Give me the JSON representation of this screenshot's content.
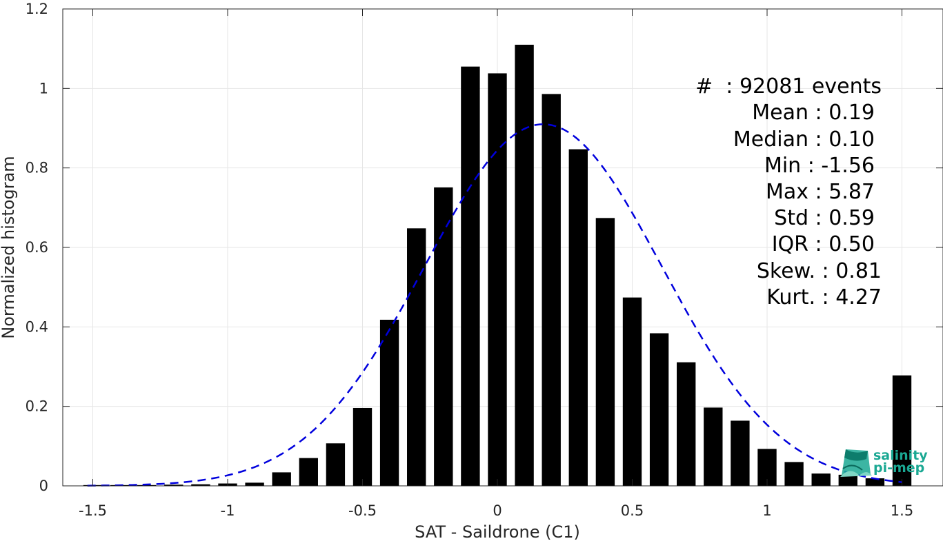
{
  "chart_data": {
    "type": "bar",
    "xlabel": "SAT - Saildrone (C1)",
    "ylabel": "Normalized histogram",
    "xlim": [
      -1.55,
      1.6
    ],
    "ylim": [
      0,
      1.2
    ],
    "x_ticks": [
      -1.5,
      -1,
      -0.5,
      0,
      0.5,
      1,
      1.5
    ],
    "x_tick_labels": [
      "-1.5",
      "-1",
      "-0.5",
      "0",
      "0.5",
      "1",
      "1.5"
    ],
    "y_ticks": [
      0,
      0.2,
      0.4,
      0.6,
      0.8,
      1,
      1.2
    ],
    "y_tick_labels": [
      "0",
      "0.2",
      "0.4",
      "0.6",
      "0.8",
      "1",
      "1.2"
    ],
    "grid": true,
    "bar_color": "#000000",
    "bar_width": 0.07,
    "series": [
      {
        "x": [
          -1.5,
          -1.4,
          -1.3,
          -1.2,
          -1.1,
          -1.0,
          -0.9,
          -0.8,
          -0.7,
          -0.6,
          -0.5,
          -0.4,
          -0.3,
          -0.2,
          -0.1,
          0.0,
          0.1,
          0.2,
          0.3,
          0.4,
          0.5,
          0.6,
          0.7,
          0.8,
          0.9,
          1.0,
          1.1,
          1.2,
          1.3,
          1.4,
          1.5
        ],
        "values": [
          0.002,
          0.002,
          0.002,
          0.003,
          0.004,
          0.006,
          0.008,
          0.034,
          0.07,
          0.107,
          0.196,
          0.418,
          0.648,
          0.751,
          1.055,
          1.038,
          1.11,
          0.986,
          0.847,
          0.674,
          0.474,
          0.384,
          0.311,
          0.197,
          0.164,
          0.093,
          0.06,
          0.031,
          0.028,
          0.019,
          0.278
        ]
      }
    ],
    "fit_curve": {
      "style": "dashed",
      "color": "#0000dd",
      "mean": 0.17,
      "std": 0.44,
      "peak": 0.91,
      "x_start": -1.52,
      "x_end": 1.5
    },
    "annotations": {
      "events_line": "#  : 92081 events",
      "stats": [
        {
          "label": "Mean : 0.19"
        },
        {
          "label": "Median : 0.10"
        },
        {
          "label": "Min : -1.56"
        },
        {
          "label": "Max : 5.87"
        },
        {
          "label": "Std : 0.59"
        },
        {
          "label": "IQR : 0.50"
        },
        {
          "label": "Skew. : 0.81"
        },
        {
          "label": "Kurt. : 4.27"
        }
      ]
    }
  },
  "logo": {
    "line1": "salinity",
    "line2": "pi-mep",
    "color": "#1aa893"
  }
}
